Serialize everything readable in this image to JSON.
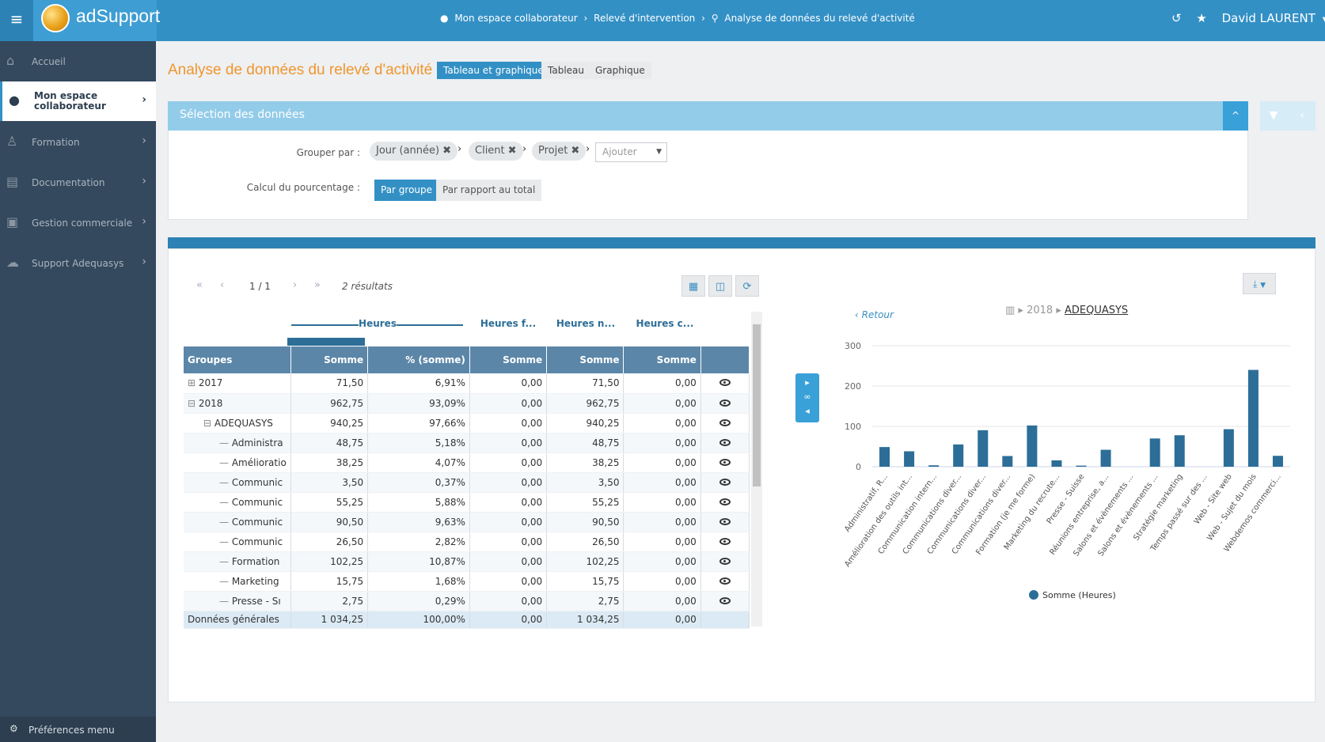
{
  "app": {
    "name": "adSupport",
    "menu_icon": "hamburger-icon",
    "logo": "adsupport-logo"
  },
  "breadcrumb": {
    "items": [
      "Mon espace collaborateur",
      "Relevé d'intervention",
      "Analyse de données du relevé d'activité"
    ]
  },
  "user": {
    "name": "David LAURENT"
  },
  "sidebar": {
    "items": [
      {
        "label": "Accueil",
        "icon": "home-icon"
      },
      {
        "label": "Mon espace collaborateur",
        "icon": "user-circle-icon",
        "active": true
      },
      {
        "label": "Formation",
        "icon": "teacher-icon"
      },
      {
        "label": "Documentation",
        "icon": "books-icon"
      },
      {
        "label": "Gestion commerciale",
        "icon": "contacts-icon"
      },
      {
        "label": "Support Adequasys",
        "icon": "cloud-gear-icon"
      }
    ],
    "prefs": "Préférences menu"
  },
  "page": {
    "title": "Analyse de données du relevé d'activité",
    "views": [
      "Tableau et graphique",
      "Tableau",
      "Graphique"
    ]
  },
  "selection": {
    "title": "Sélection des données",
    "group_by_label": "Grouper par :",
    "group_tags": [
      "Jour (année)",
      "Client",
      "Projet"
    ],
    "add_placeholder": "Ajouter",
    "percent_label": "Calcul du pourcentage :",
    "percent_options": [
      "Par groupe",
      "Par rapport au total"
    ]
  },
  "pager": {
    "page": "1 / 1",
    "results": "2 résultats"
  },
  "table": {
    "group_headers": [
      "Heures",
      "Heures f...",
      "Heures n...",
      "Heures c..."
    ],
    "columns": [
      "Groupes",
      "Somme",
      "% (somme)",
      "Somme",
      "Somme",
      "Somme"
    ],
    "rows": [
      [
        "2017",
        "71,50",
        "6,91%",
        "0,00",
        "71,50",
        "0,00"
      ],
      [
        "2018",
        "962,75",
        "93,09%",
        "0,00",
        "962,75",
        "0,00"
      ],
      [
        "ADEQUASYS",
        "940,25",
        "97,66%",
        "0,00",
        "940,25",
        "0,00"
      ],
      [
        "Administra",
        "48,75",
        "5,18%",
        "0,00",
        "48,75",
        "0,00"
      ],
      [
        "Amélioratio",
        "38,25",
        "4,07%",
        "0,00",
        "38,25",
        "0,00"
      ],
      [
        "Communic",
        "3,50",
        "0,37%",
        "0,00",
        "3,50",
        "0,00"
      ],
      [
        "Communic",
        "55,25",
        "5,88%",
        "0,00",
        "55,25",
        "0,00"
      ],
      [
        "Communic",
        "90,50",
        "9,63%",
        "0,00",
        "90,50",
        "0,00"
      ],
      [
        "Communic",
        "26,50",
        "2,82%",
        "0,00",
        "26,50",
        "0,00"
      ],
      [
        "Formation",
        "102,25",
        "10,87%",
        "0,00",
        "102,25",
        "0,00"
      ],
      [
        "Marketing",
        "15,75",
        "1,68%",
        "0,00",
        "15,75",
        "0,00"
      ],
      [
        "Presse - Sı",
        "2,75",
        "0,29%",
        "0,00",
        "2,75",
        "0,00"
      ]
    ],
    "total": [
      "Données générales",
      "1 034,25",
      "100,00%",
      "0,00",
      "1 034,25",
      "0,00"
    ]
  },
  "chart_nav": {
    "retour": "Retour",
    "year": "2018",
    "client": "ADEQUASYS"
  },
  "chart_data": {
    "type": "bar",
    "categories": [
      "Administratif, R...",
      "Amélioration des outils int...",
      "Communication intern...",
      "Communications diver...",
      "Communications diver...",
      "Communications diver...",
      "Formation (je me forme)",
      "Marketing du recrute...",
      "Presse - Suisse",
      "Réunions entreprise, a...",
      "Salons et évènements ...",
      "Salons et évènements ...",
      "Stratégie marketing",
      "Temps passé sur des ...",
      "Web - Site web",
      "Web - Sujet du mois",
      "Webdemos commerci..."
    ],
    "values": [
      48.75,
      38.25,
      3.5,
      55.25,
      90.5,
      26.5,
      102.25,
      15.75,
      2.75,
      42,
      0,
      70,
      78,
      0,
      93,
      240,
      27
    ],
    "ylim": [
      0,
      300
    ],
    "yticks": [
      0,
      100,
      200,
      300
    ],
    "series_name": "Somme (Heures)",
    "legend": "bottom",
    "color": "#2c6e97"
  }
}
